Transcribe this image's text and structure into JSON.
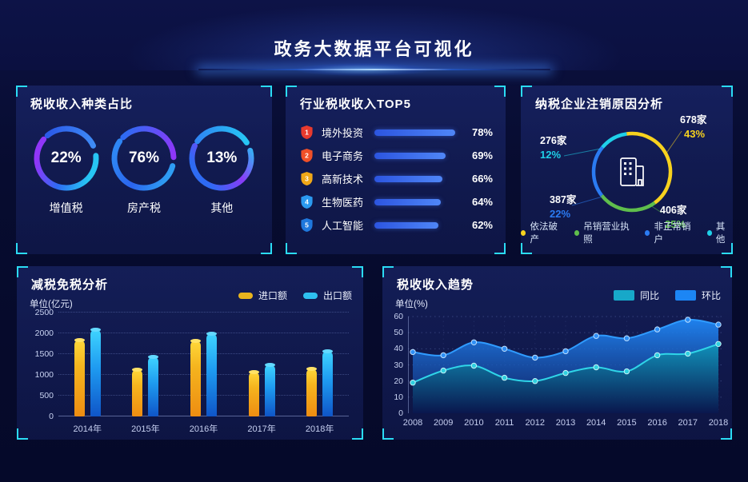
{
  "header": {
    "title": "政务大数据平台可视化"
  },
  "colors": {
    "accent_cyan": "#2bdcf5",
    "panel_bg": "#121b50",
    "page_bg": "#060a2b"
  },
  "panels": {
    "tax_type": {
      "title": "税收收入种类占比",
      "rings": [
        {
          "pct": "22%",
          "label": "增值税"
        },
        {
          "pct": "76%",
          "label": "房产税"
        },
        {
          "pct": "13%",
          "label": "其他"
        }
      ]
    },
    "industry_top5": {
      "title": "行业税收收入TOP5",
      "rows": [
        {
          "rank": "1",
          "label": "境外投资",
          "pct": "78%",
          "badge_color": "#e83a2e"
        },
        {
          "rank": "2",
          "label": "电子商务",
          "pct": "69%",
          "badge_color": "#f05028"
        },
        {
          "rank": "3",
          "label": "高新技术",
          "pct": "66%",
          "badge_color": "#f0a818"
        },
        {
          "rank": "4",
          "label": "生物医药",
          "pct": "64%",
          "badge_color": "#2b9af0"
        },
        {
          "rank": "5",
          "label": "人工智能",
          "pct": "62%",
          "badge_color": "#1f78dd"
        }
      ]
    },
    "deregistration": {
      "title": "纳税企业注销原因分析",
      "center_icon": "building-icon",
      "segments": [
        {
          "label": "依法破产",
          "count": "678家",
          "pct": "43%",
          "color": "#f7d21e"
        },
        {
          "label": "吊销营业执照",
          "count": "406家",
          "pct": "25%",
          "color": "#5fbe4c"
        },
        {
          "label": "非正常销户",
          "count": "387家",
          "pct": "22%",
          "color": "#2b7bf2"
        },
        {
          "label": "其他",
          "count": "276家",
          "pct": "12%",
          "color": "#1fd0e8"
        }
      ]
    },
    "reduction": {
      "title": "减税免税分析",
      "unit": "单位(亿元)",
      "legend": [
        {
          "label": "进口额",
          "color": "#e8b41e"
        },
        {
          "label": "出口额",
          "color": "#2ec0f0"
        }
      ]
    },
    "trend": {
      "title": "税收收入趋势",
      "unit": "单位(%)",
      "legend": [
        {
          "label": "同比",
          "color": "#17a8c9"
        },
        {
          "label": "环比",
          "color": "#1c86f5"
        }
      ]
    }
  },
  "chart_data": [
    {
      "id": "tax_type_rings",
      "type": "pie",
      "title": "税收收入种类占比",
      "unit": "%",
      "series": [
        {
          "label": "增值税",
          "value": 22
        },
        {
          "label": "房产税",
          "value": 76
        },
        {
          "label": "其他",
          "value": 13
        }
      ]
    },
    {
      "id": "industry_top5",
      "type": "bar",
      "orientation": "horizontal",
      "title": "行业税收收入TOP5",
      "unit": "%",
      "xlim": [
        0,
        100
      ],
      "categories": [
        "境外投资",
        "电子商务",
        "高新技术",
        "生物医药",
        "人工智能"
      ],
      "values": [
        78,
        69,
        66,
        64,
        62
      ]
    },
    {
      "id": "deregistration",
      "type": "pie",
      "title": "纳税企业注销原因分析",
      "count_unit": "家",
      "labels": [
        "依法破产",
        "吊销营业执照",
        "非正常销户",
        "其他"
      ],
      "counts": [
        678,
        406,
        387,
        276
      ],
      "values": [
        43,
        25,
        22,
        12
      ]
    },
    {
      "id": "tax_reduction",
      "type": "bar",
      "title": "减税免税分析",
      "ylabel": "单位(亿元)",
      "ylim": [
        0,
        2500
      ],
      "yticks": [
        0,
        500,
        1000,
        1500,
        2000,
        2500
      ],
      "grid": "dotted",
      "legend_position": "top-right",
      "categories": [
        "2014年",
        "2015年",
        "2016年",
        "2017年",
        "2018年"
      ],
      "series": [
        {
          "name": "进口额",
          "values": [
            1850,
            1130,
            1820,
            1080,
            1160
          ]
        },
        {
          "name": "出口额",
          "values": [
            2100,
            1450,
            2000,
            1250,
            1580
          ]
        }
      ]
    },
    {
      "id": "revenue_trend",
      "type": "area",
      "title": "税收收入趋势",
      "ylabel": "单位(%)",
      "ylim": [
        0,
        60
      ],
      "yticks": [
        0,
        10,
        20,
        30,
        40,
        50,
        60
      ],
      "grid": "dotted",
      "legend_position": "top-right",
      "x": [
        "2008",
        "2009",
        "2010",
        "2011",
        "2012",
        "2013",
        "2014",
        "2015",
        "2016",
        "2017",
        "2018"
      ],
      "series": [
        {
          "name": "同比",
          "values": [
            19,
            26.5,
            29.5,
            22,
            20,
            25,
            28.5,
            26,
            36,
            37,
            43
          ]
        },
        {
          "name": "环比",
          "values": [
            38,
            36,
            44,
            40,
            34.5,
            38.5,
            48,
            46.5,
            52,
            58,
            55
          ]
        }
      ]
    }
  ]
}
